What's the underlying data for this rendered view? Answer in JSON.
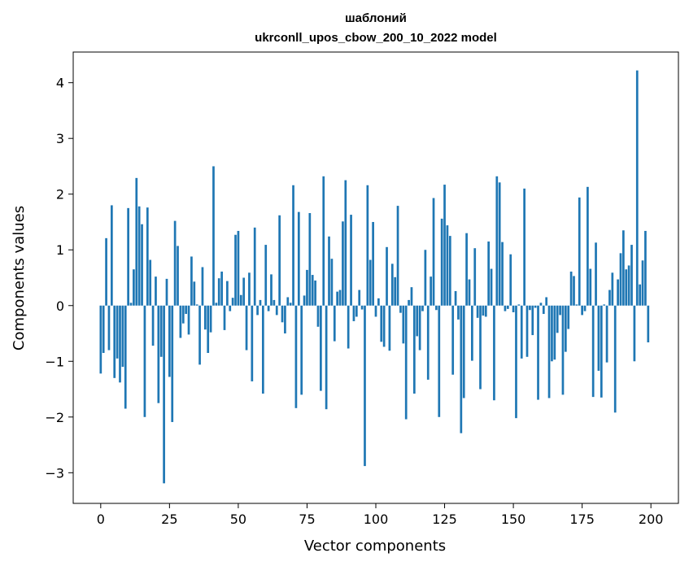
{
  "chart_data": {
    "type": "bar",
    "title": "шаблоний",
    "subtitle": "ukrconll_upos_cbow_200_10_2022 model",
    "xlabel": "Vector components",
    "ylabel": "Components values",
    "xlim": [
      -10,
      210
    ],
    "ylim": [
      -3.55,
      4.55
    ],
    "xticks": [
      0,
      25,
      50,
      75,
      100,
      125,
      150,
      175,
      200
    ],
    "yticks": [
      -3,
      -2,
      -1,
      0,
      1,
      2,
      3,
      4
    ],
    "bar_color": "#1f77b4",
    "grid": false,
    "x": [
      0,
      1,
      2,
      3,
      4,
      5,
      6,
      7,
      8,
      9,
      10,
      11,
      12,
      13,
      14,
      15,
      16,
      17,
      18,
      19,
      20,
      21,
      22,
      23,
      24,
      25,
      26,
      27,
      28,
      29,
      30,
      31,
      32,
      33,
      34,
      35,
      36,
      37,
      38,
      39,
      40,
      41,
      42,
      43,
      44,
      45,
      46,
      47,
      48,
      49,
      50,
      51,
      52,
      53,
      54,
      55,
      56,
      57,
      58,
      59,
      60,
      61,
      62,
      63,
      64,
      65,
      66,
      67,
      68,
      69,
      70,
      71,
      72,
      73,
      74,
      75,
      76,
      77,
      78,
      79,
      80,
      81,
      82,
      83,
      84,
      85,
      86,
      87,
      88,
      89,
      90,
      91,
      92,
      93,
      94,
      95,
      96,
      97,
      98,
      99,
      100,
      101,
      102,
      103,
      104,
      105,
      106,
      107,
      108,
      109,
      110,
      111,
      112,
      113,
      114,
      115,
      116,
      117,
      118,
      119,
      120,
      121,
      122,
      123,
      124,
      125,
      126,
      127,
      128,
      129,
      130,
      131,
      132,
      133,
      134,
      135,
      136,
      137,
      138,
      139,
      140,
      141,
      142,
      143,
      144,
      145,
      146,
      147,
      148,
      149,
      150,
      151,
      152,
      153,
      154,
      155,
      156,
      157,
      158,
      159,
      160,
      161,
      162,
      163,
      164,
      165,
      166,
      167,
      168,
      169,
      170,
      171,
      172,
      173,
      174,
      175,
      176,
      177,
      178,
      179,
      180,
      181,
      182,
      183,
      184,
      185,
      186,
      187,
      188,
      189,
      190,
      191,
      192,
      193,
      194,
      195,
      196,
      197,
      198,
      199
    ],
    "values": [
      -1.22,
      -0.85,
      1.21,
      -0.8,
      1.8,
      -1.3,
      -0.95,
      -1.38,
      -1.1,
      -1.85,
      1.75,
      0.05,
      0.65,
      2.29,
      1.78,
      1.46,
      -2.0,
      1.76,
      0.82,
      -0.72,
      0.52,
      -1.75,
      -0.92,
      -3.19,
      0.48,
      -1.28,
      -2.09,
      1.52,
      1.07,
      -0.58,
      -0.32,
      -0.15,
      -0.52,
      0.88,
      0.43,
      0.02,
      -1.06,
      0.69,
      -0.43,
      -0.85,
      -0.48,
      2.5,
      0.05,
      0.49,
      0.61,
      -0.44,
      0.44,
      -0.1,
      0.14,
      1.27,
      1.34,
      0.19,
      0.5,
      -0.8,
      0.59,
      -1.36,
      1.4,
      -0.17,
      0.1,
      -1.58,
      1.09,
      -0.1,
      0.56,
      0.1,
      -0.17,
      1.62,
      -0.3,
      -0.5,
      0.15,
      0.05,
      2.16,
      -1.84,
      1.68,
      -1.6,
      0.18,
      0.64,
      1.66,
      0.55,
      0.45,
      -0.38,
      -1.53,
      2.32,
      -1.86,
      1.24,
      0.84,
      -0.64,
      0.25,
      0.28,
      1.51,
      2.25,
      -0.77,
      1.63,
      -0.28,
      -0.2,
      0.28,
      -0.07,
      -2.88,
      2.16,
      0.82,
      1.5,
      -0.2,
      0.13,
      -0.65,
      -0.74,
      1.05,
      -0.81,
      0.75,
      0.51,
      1.79,
      -0.13,
      -0.68,
      -2.04,
      0.1,
      0.33,
      -1.58,
      -0.55,
      -0.8,
      -0.1,
      1.0,
      -1.33,
      0.52,
      1.93,
      -0.08,
      -2.0,
      1.56,
      2.17,
      1.44,
      1.25,
      -1.24,
      0.26,
      -0.25,
      -2.29,
      -1.66,
      1.3,
      0.47,
      -0.99,
      1.03,
      -0.22,
      -1.5,
      -0.18,
      -0.2,
      1.15,
      0.66,
      -1.7,
      2.32,
      2.21,
      1.14,
      -0.1,
      -0.06,
      0.92,
      -0.12,
      -2.02,
      0.02,
      -0.95,
      2.1,
      -0.92,
      -0.08,
      -0.53,
      -0.04,
      -1.69,
      0.05,
      -0.15,
      0.15,
      -1.66,
      -1.0,
      -0.97,
      -0.49,
      -0.17,
      -1.6,
      -0.83,
      -0.42,
      0.61,
      0.53,
      0.02,
      1.94,
      -0.17,
      -0.1,
      2.13,
      0.66,
      -1.64,
      1.13,
      -1.17,
      -1.65,
      0.02,
      -1.02,
      0.28,
      0.59,
      -1.92,
      0.47,
      0.94,
      1.35,
      0.65,
      0.72,
      1.09,
      -1.0,
      4.22,
      0.38,
      0.81,
      1.34,
      -0.66
    ]
  }
}
